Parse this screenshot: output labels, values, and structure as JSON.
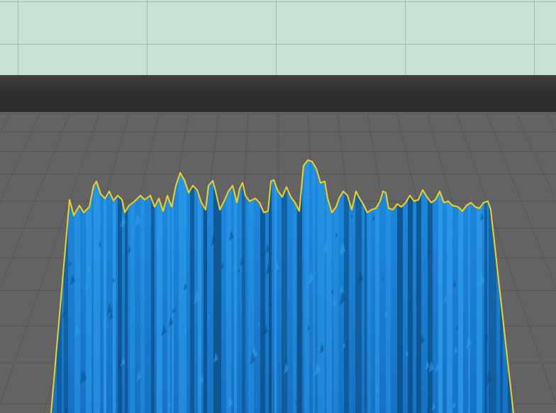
{
  "scene": {
    "kind": "3d-viewport",
    "colors": {
      "sky": "#c9e2d6",
      "wall": "#2f322f",
      "floor": "#636363",
      "grid_line": "#565656",
      "model_fill": "#1a82d6",
      "model_dark": "#0c4f86",
      "model_light": "#2fa0ec",
      "model_outline": "#f2d21a"
    },
    "objects": [
      {
        "name": "blue-ridged-mesh",
        "outline": "selected"
      }
    ]
  }
}
